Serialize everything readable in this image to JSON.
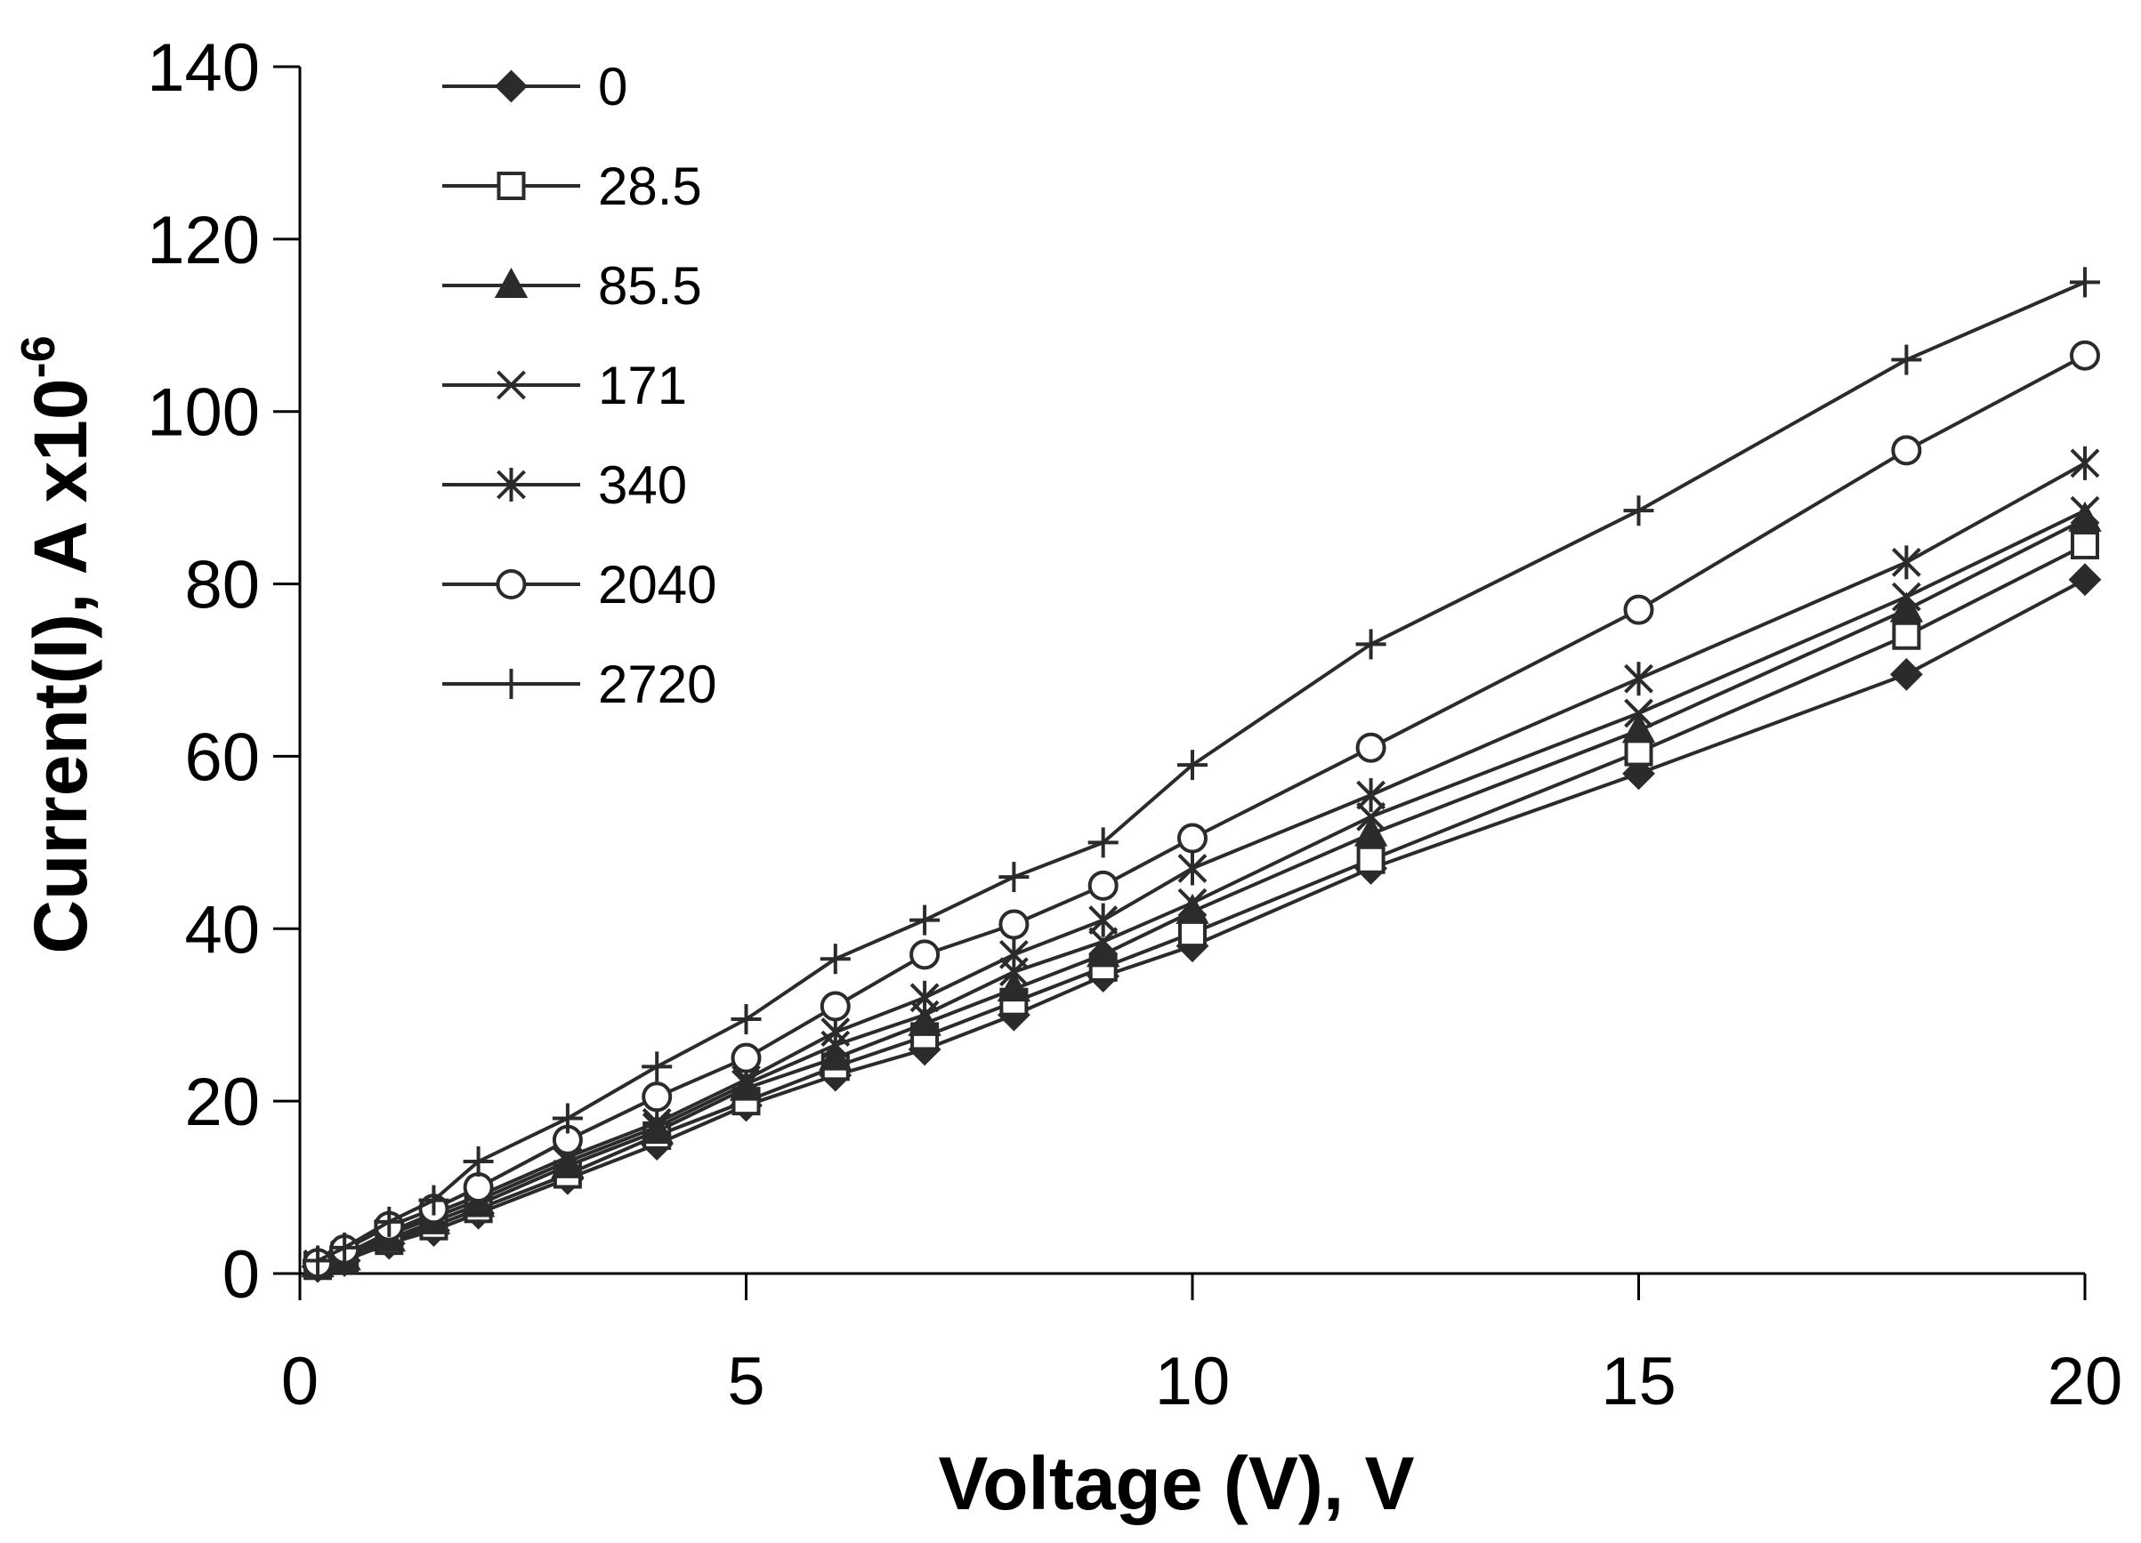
{
  "chart_data": {
    "type": "line",
    "title": "",
    "xlabel": "Voltage (V), V",
    "ylabel_main": "Current(I), A x10",
    "ylabel_sup": "-6",
    "xlim": [
      0,
      20
    ],
    "ylim": [
      0,
      140
    ],
    "xticks": [
      "0",
      "5",
      "10",
      "15",
      "20"
    ],
    "yticks": [
      "0",
      "20",
      "40",
      "60",
      "80",
      "100",
      "120",
      "140"
    ],
    "legend_position": "top-left",
    "x": [
      0.2,
      0.5,
      1,
      1.5,
      2,
      3,
      4,
      5,
      6,
      7,
      8,
      9,
      10,
      12,
      15,
      18,
      20
    ],
    "series": [
      {
        "name": "0",
        "marker": "diamond",
        "values": [
          0.8,
          1.5,
          3.5,
          5.0,
          7.0,
          11.0,
          15.0,
          19.5,
          23.0,
          26.0,
          30.0,
          34.5,
          38.0,
          47.0,
          58.0,
          69.5,
          80.5
        ]
      },
      {
        "name": "28.5",
        "marker": "square",
        "values": [
          0.9,
          1.6,
          3.8,
          5.5,
          7.5,
          11.5,
          16.0,
          20.0,
          24.0,
          27.5,
          31.5,
          35.5,
          39.5,
          48.0,
          60.5,
          74.0,
          84.5
        ]
      },
      {
        "name": "85.5",
        "marker": "triangle",
        "values": [
          1.0,
          1.8,
          4.0,
          6.0,
          8.0,
          12.5,
          16.5,
          21.5,
          25.0,
          29.0,
          33.0,
          37.0,
          42.0,
          51.0,
          63.0,
          77.0,
          87.5
        ]
      },
      {
        "name": "171",
        "marker": "x",
        "values": [
          1.0,
          2.0,
          4.5,
          6.5,
          8.5,
          13.0,
          17.0,
          22.0,
          26.5,
          30.0,
          35.0,
          38.5,
          43.0,
          53.0,
          65.0,
          78.5,
          88.5
        ]
      },
      {
        "name": "340",
        "marker": "asterisk",
        "values": [
          1.1,
          2.2,
          4.8,
          7.0,
          9.0,
          13.5,
          17.5,
          22.5,
          28.0,
          32.0,
          37.0,
          41.0,
          47.0,
          55.5,
          69.0,
          82.5,
          94.0
        ]
      },
      {
        "name": "2040",
        "marker": "circle",
        "values": [
          1.2,
          2.8,
          5.5,
          7.5,
          10.0,
          15.5,
          20.5,
          25.0,
          31.0,
          37.0,
          40.5,
          45.0,
          50.5,
          61.0,
          77.0,
          95.5,
          106.5
        ]
      },
      {
        "name": "2720",
        "marker": "plus",
        "values": [
          1.5,
          3.0,
          6.0,
          8.5,
          13.0,
          18.0,
          24.0,
          29.5,
          36.5,
          41.0,
          46.0,
          50.0,
          59.0,
          73.0,
          88.5,
          106.0,
          115.0
        ]
      }
    ]
  }
}
